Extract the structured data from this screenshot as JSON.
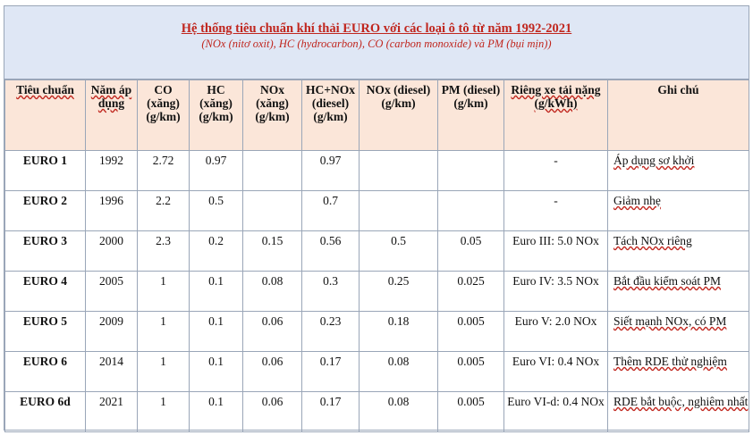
{
  "title": "Hệ thống tiêu chuẩn khí thải EURO với các loại ô tô từ năm 1992-2021",
  "subtitle": "(NOx (nitơ oxit), HC (hydrocarbon), CO (carbon monoxide) và PM (bụi mịn))",
  "columns": [
    "Tiêu chuẩn",
    "Năm áp dụng",
    "CO (xăng) (g/km)",
    "HC (xăng) (g/km)",
    "NOx (xăng) (g/km)",
    "HC+NOx (diesel) (g/km)",
    "NOx (diesel) (g/km)",
    "PM (diesel) (g/km)",
    "Riêng xe tải nặng (g/kWh)",
    "Ghi chú"
  ],
  "rows": [
    [
      "EURO 1",
      "1992",
      "2.72",
      "0.97",
      "",
      "0.97",
      "",
      "",
      "-",
      "Áp dụng sơ khởi"
    ],
    [
      "EURO 2",
      "1996",
      "2.2",
      "0.5",
      "",
      "0.7",
      "",
      "",
      "-",
      "Giảm nhẹ"
    ],
    [
      "EURO 3",
      "2000",
      "2.3",
      "0.2",
      "0.15",
      "0.56",
      "0.5",
      "0.05",
      "Euro III: 5.0 NOx",
      "Tách NOx riêng"
    ],
    [
      "EURO 4",
      "2005",
      "1",
      "0.1",
      "0.08",
      "0.3",
      "0.25",
      "0.025",
      "Euro IV: 3.5 NOx",
      "Bắt đầu kiểm soát PM"
    ],
    [
      "EURO 5",
      "2009",
      "1",
      "0.1",
      "0.06",
      "0.23",
      "0.18",
      "0.005",
      "Euro V: 2.0 NOx",
      "Siết mạnh NOx, có PM"
    ],
    [
      "EURO 6",
      "2014",
      "1",
      "0.1",
      "0.06",
      "0.17",
      "0.08",
      "0.005",
      "Euro VI: 0.4 NOx",
      "Thêm RDE thử nghiệm"
    ],
    [
      "EURO 6d",
      "2021",
      "1",
      "0.1",
      "0.06",
      "0.17",
      "0.08",
      "0.005",
      "Euro VI-d: 0.4 NOx",
      "RDE bắt buộc, nghiêm nhất"
    ]
  ]
}
